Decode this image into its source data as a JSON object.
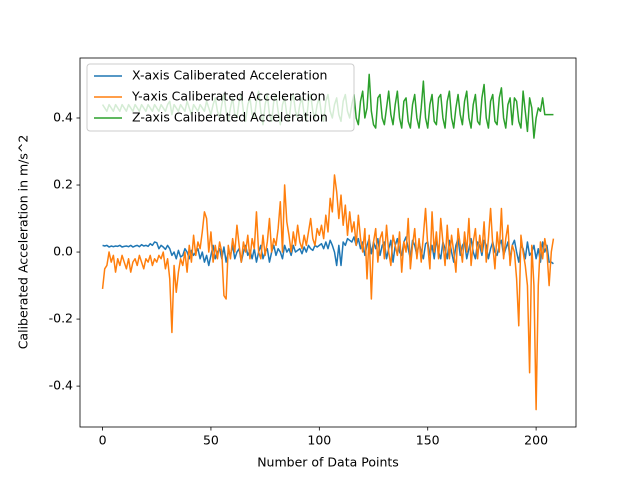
{
  "chart_data": {
    "type": "line",
    "xlabel": "Number of Data Points",
    "ylabel": "Caliberated Acceleration in m/s^2",
    "x": [
      0,
      1,
      2,
      3,
      4,
      5,
      6,
      7,
      8,
      9,
      10,
      11,
      12,
      13,
      14,
      15,
      16,
      17,
      18,
      19,
      20,
      21,
      22,
      23,
      24,
      25,
      26,
      27,
      28,
      29,
      30,
      31,
      32,
      33,
      34,
      35,
      36,
      37,
      38,
      39,
      40,
      41,
      42,
      43,
      44,
      45,
      46,
      47,
      48,
      49,
      50,
      51,
      52,
      53,
      54,
      55,
      56,
      57,
      58,
      59,
      60,
      61,
      62,
      63,
      64,
      65,
      66,
      67,
      68,
      69,
      70,
      71,
      72,
      73,
      74,
      75,
      76,
      77,
      78,
      79,
      80,
      81,
      82,
      83,
      84,
      85,
      86,
      87,
      88,
      89,
      90,
      91,
      92,
      93,
      94,
      95,
      96,
      97,
      98,
      99,
      100,
      101,
      102,
      103,
      104,
      105,
      106,
      107,
      108,
      109,
      110,
      111,
      112,
      113,
      114,
      115,
      116,
      117,
      118,
      119,
      120,
      121,
      122,
      123,
      124,
      125,
      126,
      127,
      128,
      129,
      130,
      131,
      132,
      133,
      134,
      135,
      136,
      137,
      138,
      139,
      140,
      141,
      142,
      143,
      144,
      145,
      146,
      147,
      148,
      149,
      150,
      151,
      152,
      153,
      154,
      155,
      156,
      157,
      158,
      159,
      160,
      161,
      162,
      163,
      164,
      165,
      166,
      167,
      168,
      169,
      170,
      171,
      172,
      173,
      174,
      175,
      176,
      177,
      178,
      179,
      180,
      181,
      182,
      183,
      184,
      185,
      186,
      187,
      188,
      189,
      190,
      191,
      192,
      193,
      194,
      195,
      196,
      197,
      198,
      199,
      200,
      201,
      202,
      203,
      204,
      205,
      206,
      207,
      208
    ],
    "series": [
      {
        "name": "X-axis Caliberated Acceleration",
        "color": "#1f77b4",
        "values": [
          0.02,
          0.018,
          0.02,
          0.015,
          0.018,
          0.016,
          0.018,
          0.017,
          0.02,
          0.015,
          0.017,
          0.018,
          0.016,
          0.02,
          0.015,
          0.018,
          0.02,
          0.016,
          0.022,
          0.018,
          0.02,
          0.017,
          0.025,
          0.02,
          0.03,
          0.028,
          0.01,
          0.02,
          0.015,
          0.008,
          0.02,
          0.01,
          -0.01,
          0.0,
          -0.02,
          0.005,
          -0.015,
          -0.01,
          0.01,
          0.0,
          -0.02,
          0.005,
          -0.01,
          0.0,
          0.01,
          -0.02,
          0.0,
          -0.03,
          -0.01,
          -0.04,
          -0.01,
          0.02,
          -0.02,
          0.0,
          0.01,
          -0.02,
          0.015,
          -0.03,
          0.0,
          -0.01,
          0.02,
          -0.02,
          0.0,
          0.01,
          -0.03,
          0.0,
          0.02,
          -0.01,
          0.005,
          -0.02,
          0.01,
          -0.03,
          0.0,
          0.02,
          -0.02,
          0.0,
          0.01,
          -0.03,
          0.0,
          0.02,
          -0.01,
          0.01,
          0.0,
          -0.02,
          0.02,
          0.0,
          0.01,
          -0.01,
          0.02,
          0.0,
          0.005,
          0.01,
          -0.005,
          0.015,
          0.0,
          0.02,
          0.01,
          0.005,
          0.02,
          0.015,
          0.02,
          0.025,
          0.01,
          0.03,
          0.01,
          0.035,
          0.02,
          0.0,
          -0.04,
          0.02,
          -0.04,
          0.03,
          0.02,
          0.04,
          0.035,
          0.03,
          0.045,
          0.02,
          0.04,
          0.01,
          0.03,
          -0.01,
          0.02,
          0.04,
          -0.005,
          0.03,
          0.01,
          0.04,
          -0.01,
          0.02,
          0.03,
          -0.02,
          0.01,
          0.035,
          -0.03,
          0.02,
          0.04,
          0.0,
          -0.01,
          0.03,
          0.045,
          0.01,
          -0.02,
          0.035,
          0.02,
          -0.01,
          0.03,
          0.0,
          -0.02,
          0.025,
          0.03,
          -0.01,
          0.02,
          -0.02,
          0.04,
          0.0,
          -0.02,
          0.03,
          0.01,
          -0.02,
          0.035,
          0.0,
          -0.03,
          0.02,
          0.04,
          -0.01,
          0.02,
          0.03,
          -0.02,
          0.01,
          0.04,
          0.0,
          -0.02,
          0.03,
          0.02,
          -0.01,
          0.035,
          0.02,
          -0.02,
          0.01,
          0.03,
          0.0,
          -0.01,
          0.02,
          0.035,
          -0.01,
          0.01,
          0.03,
          -0.02,
          0.02,
          0.035,
          0.0,
          -0.03,
          0.02,
          0.01,
          -0.02,
          0.03,
          -0.01,
          0.0,
          0.02,
          -0.02,
          0.01,
          -0.03,
          0.03,
          0.0,
          0.02,
          -0.03,
          -0.03,
          -0.035
        ]
      },
      {
        "name": "Y-axis Caliberated Acceleration",
        "color": "#ff7f0e",
        "values": [
          -0.11,
          -0.05,
          -0.04,
          0.0,
          -0.03,
          -0.01,
          -0.06,
          -0.02,
          -0.04,
          -0.01,
          -0.03,
          -0.05,
          -0.02,
          -0.06,
          -0.03,
          -0.02,
          -0.04,
          -0.01,
          -0.03,
          -0.05,
          -0.02,
          -0.03,
          -0.01,
          -0.04,
          -0.02,
          -0.03,
          -0.01,
          -0.02,
          0.0,
          -0.05,
          -0.02,
          -0.08,
          -0.24,
          -0.04,
          -0.12,
          -0.06,
          -0.02,
          -0.04,
          0.0,
          -0.06,
          0.02,
          -0.03,
          0.05,
          -0.01,
          0.03,
          0.01,
          0.06,
          0.12,
          0.1,
          0.0,
          0.06,
          -0.03,
          0.02,
          -0.02,
          0.03,
          0.0,
          -0.13,
          -0.14,
          0.02,
          -0.02,
          0.04,
          0.0,
          0.08,
          0.02,
          -0.03,
          0.03,
          0.0,
          0.05,
          -0.02,
          0.04,
          0.01,
          0.12,
          0.0,
          -0.02,
          0.05,
          -0.01,
          0.03,
          0.1,
          0.0,
          0.04,
          0.02,
          0.07,
          0.15,
          0.0,
          0.2,
          0.09,
          0.05,
          0.0,
          0.06,
          0.02,
          0.08,
          0.03,
          0.01,
          0.05,
          0.02,
          0.06,
          0.1,
          0.04,
          0.02,
          0.07,
          0.05,
          0.08,
          0.04,
          0.11,
          0.06,
          0.16,
          0.12,
          0.23,
          0.18,
          0.1,
          0.17,
          0.08,
          0.14,
          0.05,
          0.12,
          0.06,
          0.09,
          0.02,
          0.11,
          0.04,
          0.0,
          0.07,
          -0.08,
          0.05,
          -0.14,
          0.03,
          0.07,
          -0.03,
          0.04,
          0.06,
          -0.02,
          0.08,
          0.0,
          -0.04,
          0.05,
          0.02,
          -0.01,
          0.06,
          -0.06,
          0.03,
          0.0,
          0.1,
          -0.05,
          0.02,
          0.07,
          -0.02,
          0.04,
          -0.03,
          0.05,
          0.13,
          0.02,
          -0.05,
          0.12,
          0.0,
          0.06,
          -0.02,
          0.1,
          0.03,
          -0.04,
          0.08,
          -0.02,
          0.05,
          0.0,
          -0.06,
          0.07,
          0.02,
          -0.03,
          0.06,
          0.0,
          0.1,
          -0.04,
          0.03,
          0.07,
          -0.02,
          0.05,
          0.0,
          0.09,
          -0.03,
          0.04,
          0.13,
          0.02,
          -0.05,
          0.06,
          0.0,
          0.13,
          -0.02,
          0.04,
          0.08,
          -0.04,
          0.02,
          0.0,
          -0.08,
          -0.22,
          0.05,
          0.0,
          -0.04,
          -0.1,
          -0.36,
          0.02,
          -0.1,
          -0.47,
          -0.1,
          0.03,
          -0.02,
          0.04,
          0.0,
          -0.1,
          0.0,
          0.04
        ]
      },
      {
        "name": "Z-axis Caliberated Acceleration",
        "color": "#2ca02c",
        "values": [
          0.44,
          0.43,
          0.42,
          0.44,
          0.43,
          0.42,
          0.44,
          0.43,
          0.42,
          0.44,
          0.43,
          0.42,
          0.44,
          0.43,
          0.42,
          0.44,
          0.43,
          0.42,
          0.44,
          0.43,
          0.42,
          0.44,
          0.43,
          0.42,
          0.44,
          0.43,
          0.42,
          0.44,
          0.43,
          0.42,
          0.44,
          0.45,
          0.41,
          0.44,
          0.43,
          0.42,
          0.44,
          0.43,
          0.42,
          0.45,
          0.43,
          0.41,
          0.44,
          0.43,
          0.42,
          0.44,
          0.43,
          0.42,
          0.45,
          0.43,
          0.41,
          0.44,
          0.46,
          0.42,
          0.4,
          0.44,
          0.47,
          0.42,
          0.39,
          0.43,
          0.46,
          0.41,
          0.4,
          0.45,
          0.47,
          0.42,
          0.39,
          0.44,
          0.46,
          0.41,
          0.4,
          0.45,
          0.48,
          0.42,
          0.38,
          0.44,
          0.47,
          0.41,
          0.39,
          0.45,
          0.47,
          0.42,
          0.38,
          0.44,
          0.46,
          0.41,
          0.39,
          0.45,
          0.47,
          0.42,
          0.4,
          0.44,
          0.46,
          0.41,
          0.39,
          0.45,
          0.47,
          0.42,
          0.4,
          0.44,
          0.46,
          0.41,
          0.39,
          0.45,
          0.47,
          0.42,
          0.4,
          0.44,
          0.46,
          0.41,
          0.39,
          0.45,
          0.47,
          0.42,
          0.4,
          0.44,
          0.47,
          0.4,
          0.38,
          0.45,
          0.48,
          0.4,
          0.43,
          0.53,
          0.42,
          0.38,
          0.37,
          0.46,
          0.47,
          0.4,
          0.38,
          0.43,
          0.48,
          0.41,
          0.38,
          0.44,
          0.48,
          0.4,
          0.37,
          0.45,
          0.46,
          0.39,
          0.37,
          0.44,
          0.47,
          0.4,
          0.37,
          0.43,
          0.51,
          0.4,
          0.37,
          0.44,
          0.47,
          0.39,
          0.38,
          0.46,
          0.47,
          0.4,
          0.37,
          0.45,
          0.48,
          0.4,
          0.37,
          0.43,
          0.47,
          0.41,
          0.38,
          0.45,
          0.48,
          0.4,
          0.37,
          0.44,
          0.47,
          0.39,
          0.38,
          0.46,
          0.5,
          0.4,
          0.37,
          0.45,
          0.47,
          0.39,
          0.38,
          0.46,
          0.49,
          0.4,
          0.37,
          0.44,
          0.46,
          0.38,
          0.46,
          0.45,
          0.39,
          0.37,
          0.48,
          0.42,
          0.36,
          0.46,
          0.43,
          0.34,
          0.4,
          0.43,
          0.42,
          0.46,
          0.41,
          0.41,
          0.41,
          0.41,
          0.41
        ]
      }
    ],
    "xlim": [
      -10.4,
      218.4
    ],
    "ylim": [
      -0.522,
      0.579
    ],
    "xticks": [
      0,
      50,
      100,
      150,
      200
    ],
    "yticks": [
      -0.4,
      -0.2,
      {
        "value": 0,
        "label": "0.0"
      },
      0.2,
      0.4
    ],
    "legend": "upper left"
  }
}
